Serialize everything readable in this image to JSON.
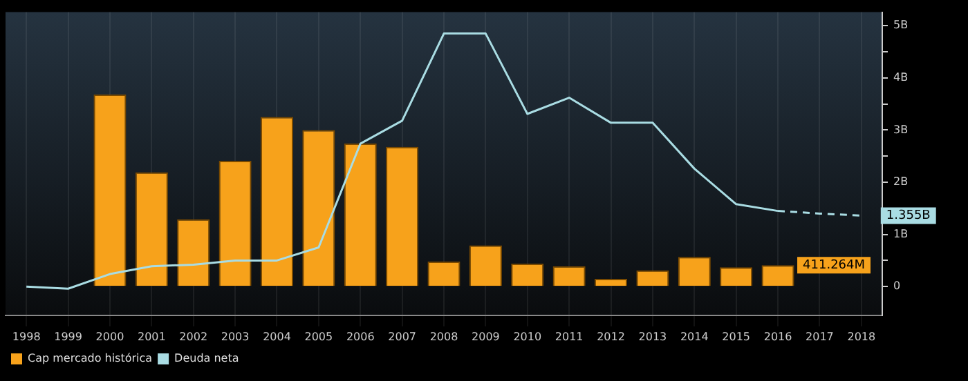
{
  "chart_data": {
    "type": "bar",
    "categories": [
      "1998",
      "1999",
      "2000",
      "2001",
      "2002",
      "2003",
      "2004",
      "2005",
      "2006",
      "2007",
      "2008",
      "2009",
      "2010",
      "2011",
      "2012",
      "2013",
      "2014",
      "2015",
      "2016",
      "2017",
      "2018"
    ],
    "series": [
      {
        "name": "Cap mercado histórica",
        "color": "#f7a21b",
        "values": [
          null,
          null,
          3.68,
          2.19,
          1.29,
          2.41,
          3.25,
          3.0,
          2.74,
          2.68,
          0.48,
          0.79,
          0.44,
          0.39,
          0.15,
          0.31,
          0.57,
          0.37,
          0.41,
          null,
          null
        ]
      },
      {
        "name": "Deuda neta",
        "type": "line",
        "color": "#a9dce3",
        "values": [
          0.0,
          -0.04,
          0.24,
          0.39,
          0.42,
          0.5,
          0.5,
          0.75,
          2.74,
          3.18,
          4.85,
          4.85,
          3.31,
          3.62,
          3.14,
          3.14,
          2.26,
          1.58,
          1.45,
          null,
          null
        ]
      },
      {
        "type": "line",
        "line_style": "dashed",
        "color": "#a9dce3",
        "values": [
          null,
          null,
          null,
          null,
          null,
          null,
          null,
          null,
          null,
          null,
          null,
          null,
          null,
          null,
          null,
          null,
          null,
          null,
          1.45,
          1.4,
          1.36
        ]
      }
    ],
    "ylim": [
      -0.55,
      5.26
    ],
    "yticks": [
      {
        "value": 0,
        "label": "0"
      },
      {
        "value": 0.5,
        "label": null
      },
      {
        "value": 1,
        "label": "1B"
      },
      {
        "value": 1.5,
        "label": null
      },
      {
        "value": 2,
        "label": "2B"
      },
      {
        "value": 2.5,
        "label": null
      },
      {
        "value": 3,
        "label": "3B"
      },
      {
        "value": 3.5,
        "label": null
      },
      {
        "value": 4,
        "label": "4B"
      },
      {
        "value": 4.5,
        "label": null
      },
      {
        "value": 5,
        "label": "5B"
      }
    ],
    "annotations": [
      {
        "text": "411.264M",
        "x": "2016",
        "y": 0.41
      },
      {
        "text": "1.355B",
        "x": "2018",
        "y": 1.36
      }
    ],
    "grid": "x",
    "legend": "bottom left",
    "marker": "none"
  }
}
